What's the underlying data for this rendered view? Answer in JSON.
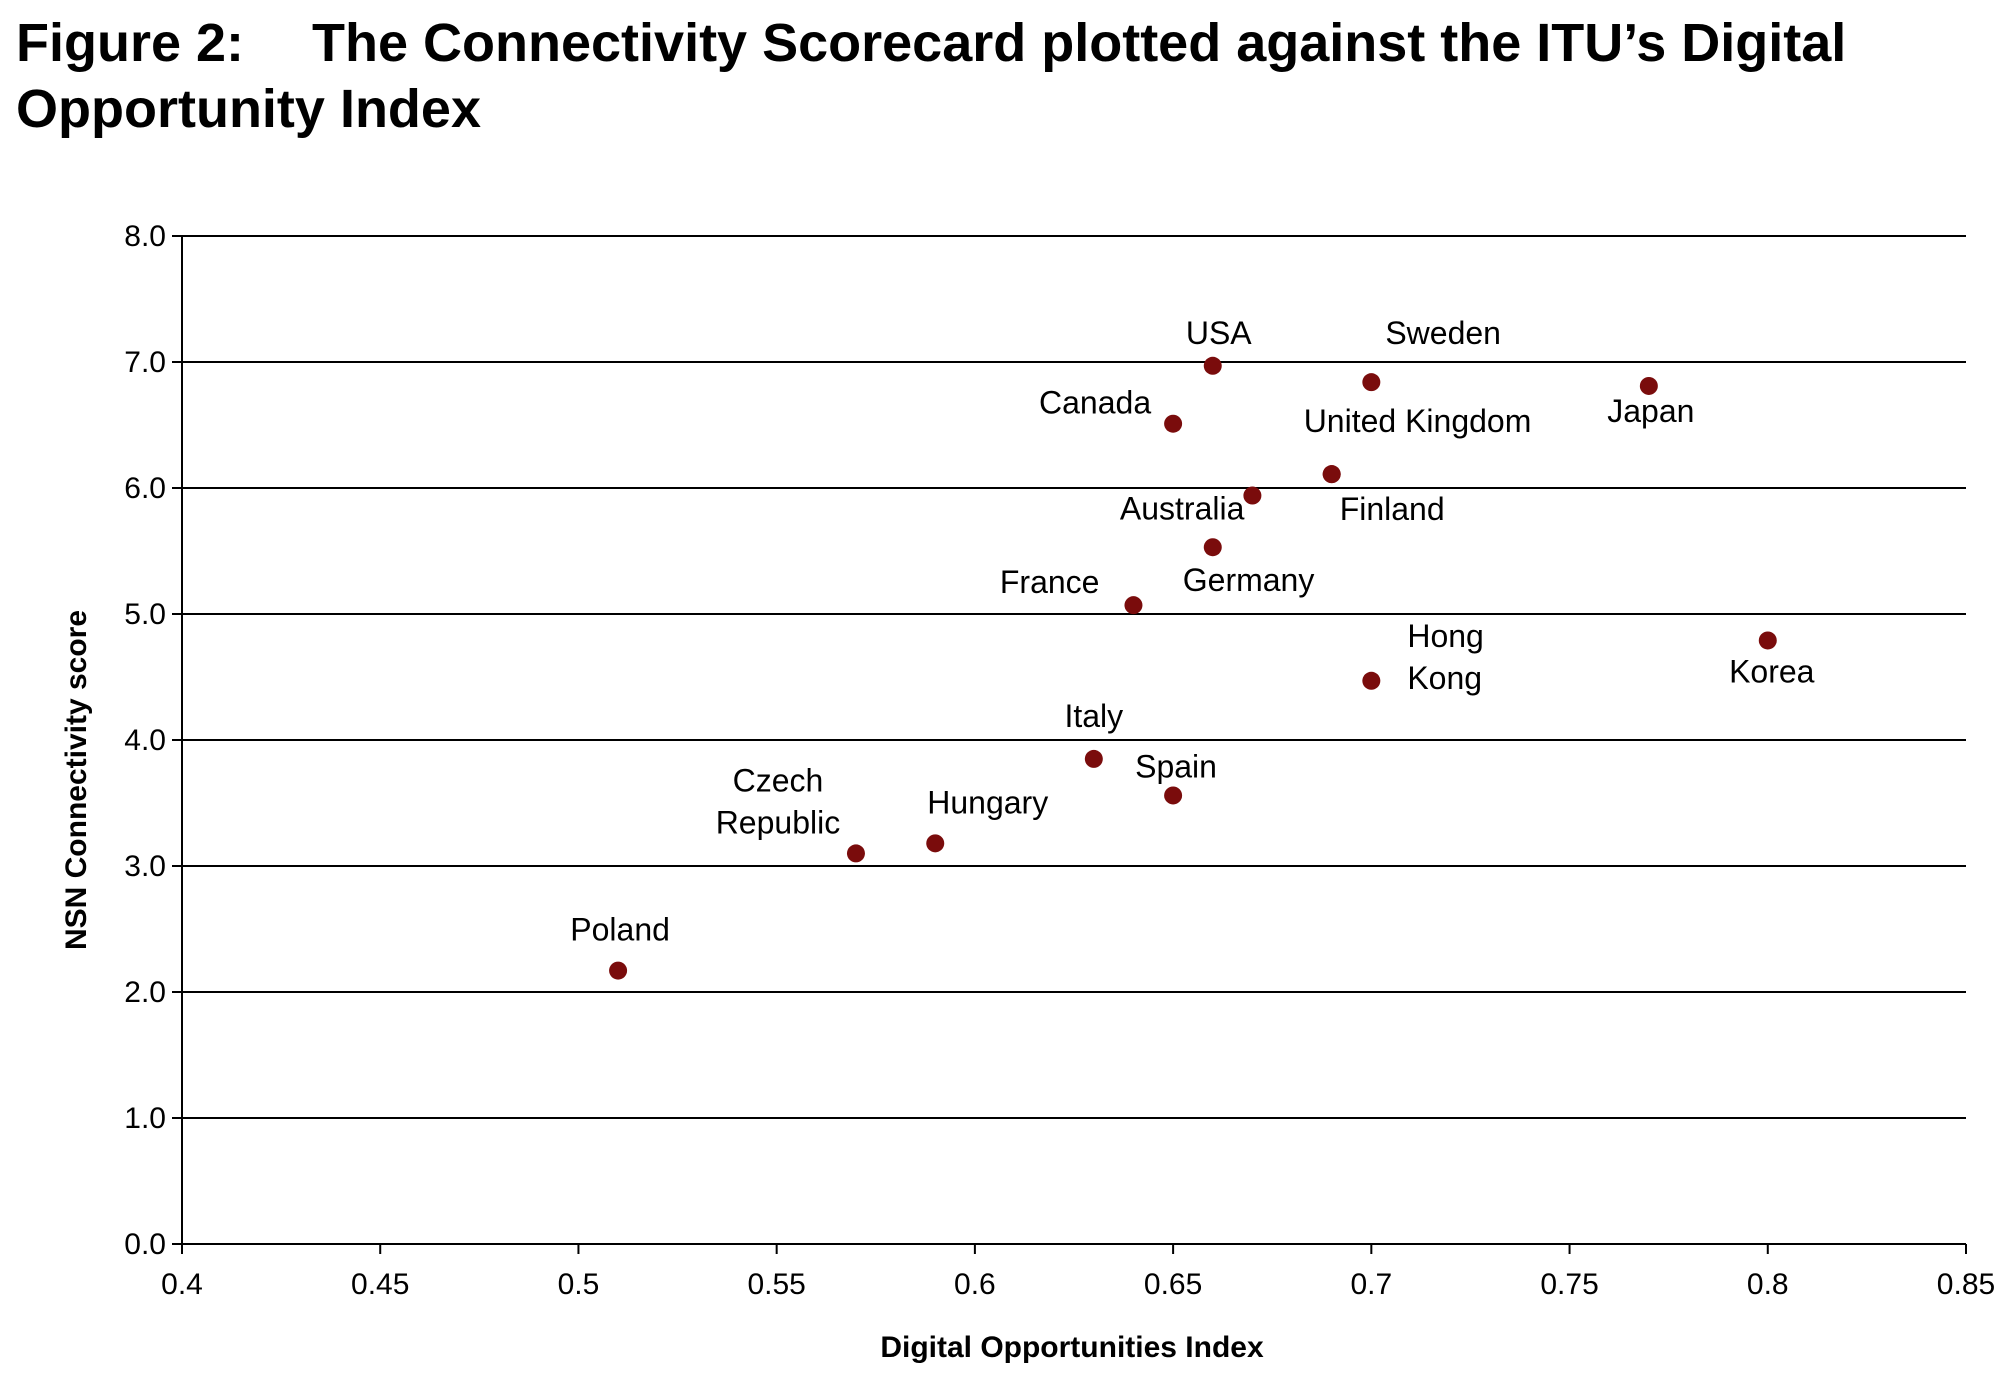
{
  "figure": {
    "label": "Figure 2:",
    "title": "The Connectivity Scorecard plotted against the ITU’s Digital Opportunity Index"
  },
  "colors": {
    "marker": "#7a0c0c",
    "axis": "#000000",
    "grid": "#000000"
  },
  "chart_data": {
    "type": "scatter",
    "xlabel": "Digital Opportunities Index",
    "ylabel": "NSN Connectivity score",
    "xlim": [
      0.4,
      0.85
    ],
    "ylim": [
      0.0,
      8.0
    ],
    "x_ticks": [
      "0.4",
      "0.45",
      "0.5",
      "0.55",
      "0.6",
      "0.65",
      "0.7",
      "0.75",
      "0.8",
      "0.85"
    ],
    "y_ticks": [
      "0.0",
      "1.0",
      "2.0",
      "3.0",
      "4.0",
      "5.0",
      "6.0",
      "7.0",
      "8.0"
    ],
    "grid": "horizontal",
    "points": [
      {
        "label": [
          "USA"
        ],
        "x": 0.66,
        "y": 6.97,
        "label_pos": "above"
      },
      {
        "label": [
          "Sweden"
        ],
        "x": 0.7,
        "y": 6.84,
        "label_pos": "above-right"
      },
      {
        "label": [
          "Japan"
        ],
        "x": 0.77,
        "y": 6.81,
        "label_pos": "below"
      },
      {
        "label": [
          "Canada"
        ],
        "x": 0.65,
        "y": 6.51,
        "label_pos": "above-left"
      },
      {
        "label": [
          "United Kingdom"
        ],
        "x": 0.69,
        "y": 6.11,
        "label_pos": "above-right"
      },
      {
        "label": [
          "Australia"
        ],
        "x": 0.67,
        "y": 5.94,
        "label_pos": "below-left"
      },
      {
        "label": [
          "Finland"
        ],
        "x": 0.69,
        "y": 6.11,
        "label_pos": "below-right"
      },
      {
        "label": [
          "Germany"
        ],
        "x": 0.66,
        "y": 5.53,
        "label_pos": "below-right"
      },
      {
        "label": [
          "France"
        ],
        "x": 0.64,
        "y": 5.07,
        "label_pos": "above-left"
      },
      {
        "label": [
          "Hong",
          "Kong"
        ],
        "x": 0.7,
        "y": 4.47,
        "label_pos": "right"
      },
      {
        "label": [
          "Korea"
        ],
        "x": 0.8,
        "y": 4.79,
        "label_pos": "below"
      },
      {
        "label": [
          "Italy"
        ],
        "x": 0.63,
        "y": 3.85,
        "label_pos": "above"
      },
      {
        "label": [
          "Spain"
        ],
        "x": 0.65,
        "y": 3.56,
        "label_pos": "above-right"
      },
      {
        "label": [
          "Hungary"
        ],
        "x": 0.59,
        "y": 3.18,
        "label_pos": "above-right"
      },
      {
        "label": [
          "Czech",
          "Republic"
        ],
        "x": 0.57,
        "y": 3.1,
        "label_pos": "above-left"
      },
      {
        "label": [
          "Poland"
        ],
        "x": 0.51,
        "y": 2.17,
        "label_pos": "above"
      }
    ]
  }
}
